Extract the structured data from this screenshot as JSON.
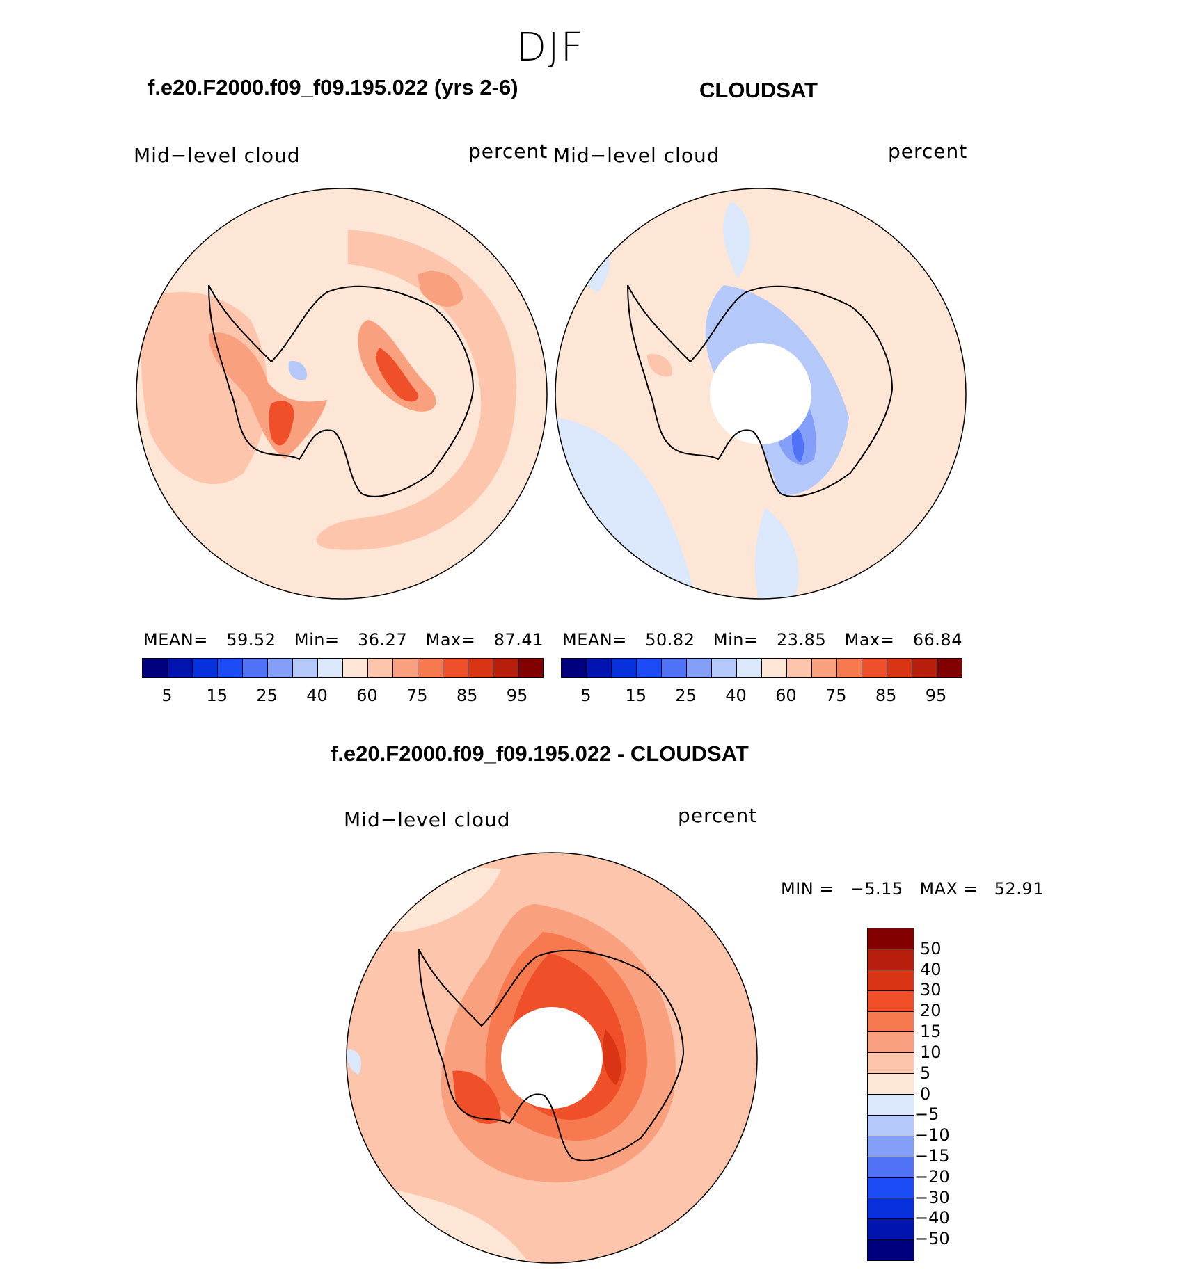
{
  "chart_data": {
    "type": "heatmap",
    "title": "DJF",
    "panels": [
      {
        "id": "model",
        "heading": "f.e20.F2000.f09_f09.195.022 (yrs 2-6)",
        "field_label": "Mid−level  cloud",
        "units": "percent",
        "stats": {
          "mean_label": "MEAN=",
          "mean": "59.52",
          "min_label": "Min=",
          "min": "36.27",
          "max_label": "Max=",
          "max": "87.41"
        }
      },
      {
        "id": "obs",
        "heading": "CLOUDSAT",
        "field_label": "Mid−level  cloud",
        "units": "percent",
        "stats": {
          "mean_label": "MEAN=",
          "mean": "50.82",
          "min_label": "Min=",
          "min": "23.85",
          "max_label": "Max=",
          "max": "66.84"
        }
      },
      {
        "id": "diff",
        "heading": "f.e20.F2000.f09_f09.195.022 - CLOUDSAT",
        "field_label": "Mid−level  cloud",
        "units": "percent",
        "stats": {
          "min_label": "MIN  =",
          "min": "−5.15",
          "max_label": "MAX  =",
          "max": "52.91"
        }
      }
    ],
    "colorbar_abs": {
      "colors": [
        "#00007f",
        "#0214b0",
        "#0630dc",
        "#1c4cf5",
        "#4f72f6",
        "#849ff7",
        "#b4c8f9",
        "#dbe8fb",
        "#fde6d6",
        "#fcc5ac",
        "#f9a07e",
        "#f6794f",
        "#f05029",
        "#d93514",
        "#b71f0c",
        "#820000"
      ],
      "tick_labels": [
        "5",
        "15",
        "25",
        "40",
        "60",
        "75",
        "85",
        "95"
      ]
    },
    "colorbar_diff": {
      "colors_top_to_bottom": [
        "#820000",
        "#b71f0c",
        "#d93514",
        "#f05029",
        "#f6794f",
        "#f9a07e",
        "#fcc5ac",
        "#fde6d6",
        "#dbe8fb",
        "#b4c8f9",
        "#849ff7",
        "#4f72f6",
        "#1c4cf5",
        "#0630dc",
        "#0214b0",
        "#00007f"
      ],
      "tick_labels": [
        "50",
        "40",
        "30",
        "20",
        "15",
        "10",
        "5",
        "0",
        "−5",
        "−10",
        "−15",
        "−20",
        "−30",
        "−40",
        "−50"
      ]
    }
  }
}
